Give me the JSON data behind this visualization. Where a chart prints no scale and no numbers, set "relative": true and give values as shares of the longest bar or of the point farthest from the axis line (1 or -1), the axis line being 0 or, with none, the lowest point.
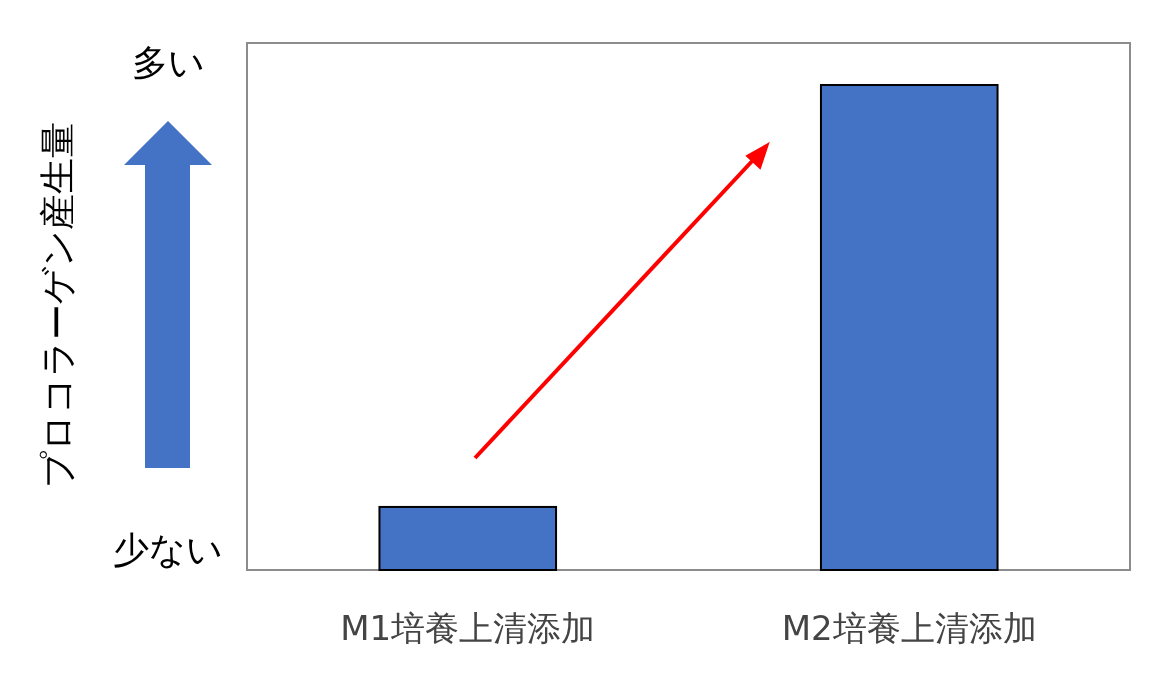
{
  "chart_data": {
    "type": "bar",
    "relative": true,
    "ylabel": "プロコラーゲン産生量",
    "categories": [
      "M1培養上清添加",
      "M2培養上清添加"
    ],
    "values": [
      0.13,
      1
    ],
    "color": "#4472c4",
    "annotations": [
      "多い",
      "少ない"
    ]
  }
}
